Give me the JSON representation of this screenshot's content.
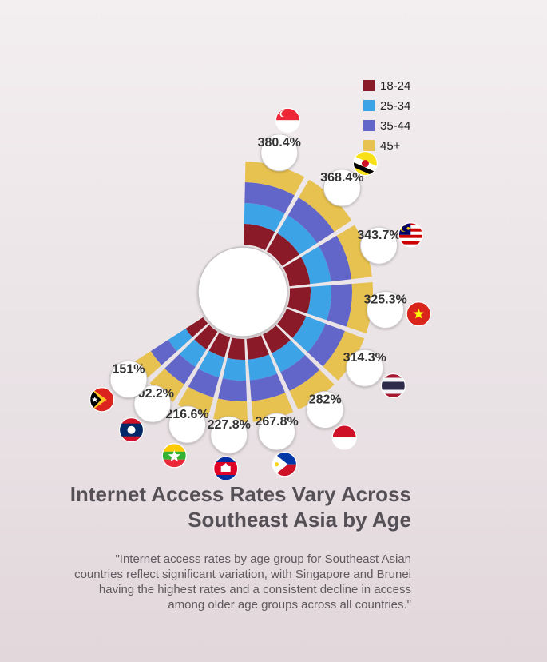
{
  "title_lines": [
    "Internet Access Rates Vary Across",
    "Southeast Asia by Age"
  ],
  "subtitle_lines": [
    "\"Internet access rates by age group for Southeast Asian",
    "countries reflect significant variation, with Singapore and Brunei",
    "having the highest rates and a consistent decline in access",
    "among older age groups across all countries.\""
  ],
  "colors": {
    "18-24": "#8b1a28",
    "25-34": "#3ba3e6",
    "35-44": "#6366c9",
    "45+": "#e8c250"
  },
  "chart_data": {
    "type": "radial-stacked-bar",
    "legend": [
      "18-24",
      "25-34",
      "35-44",
      "45+"
    ],
    "legend_position": "top-right",
    "categories": [
      "Singapore",
      "Brunei",
      "Malaysia",
      "Vietnam",
      "Thailand",
      "Indonesia",
      "Philippines",
      "Cambodia",
      "Myanmar",
      "Laos",
      "Timor-Leste"
    ],
    "totals": [
      380.4,
      368.4,
      343.7,
      325.3,
      314.3,
      282,
      267.8,
      227.8,
      216.6,
      202.2,
      151
    ],
    "total_labels": [
      "380.4%",
      "368.4%",
      "343.7%",
      "325.3%",
      "314.3%",
      "282%",
      "267.8%",
      "227.8%",
      "216.6%",
      "202.2%",
      "151%"
    ],
    "series": [
      {
        "name": "18-24",
        "values": [
          98,
          97,
          95,
          92,
          88,
          85,
          83,
          72,
          70,
          67,
          55
        ]
      },
      {
        "name": "25-34",
        "values": [
          96,
          95,
          90,
          86,
          83,
          77,
          74,
          63,
          60,
          56,
          45
        ]
      },
      {
        "name": "35-44",
        "values": [
          94,
          90,
          85,
          80,
          78,
          68,
          65,
          55,
          52,
          48,
          33
        ]
      },
      {
        "name": "45+",
        "values": [
          92.4,
          86.4,
          73.7,
          67.3,
          65.3,
          52,
          45.8,
          37.8,
          34.6,
          31.2,
          18
        ]
      }
    ],
    "flags": [
      "singapore-flag-icon",
      "brunei-flag-icon",
      "malaysia-flag-icon",
      "vietnam-flag-icon",
      "thailand-flag-icon",
      "indonesia-flag-icon",
      "philippines-flag-icon",
      "cambodia-flag-icon",
      "myanmar-flag-icon",
      "laos-flag-icon",
      "timor-leste-flag-icon"
    ]
  }
}
